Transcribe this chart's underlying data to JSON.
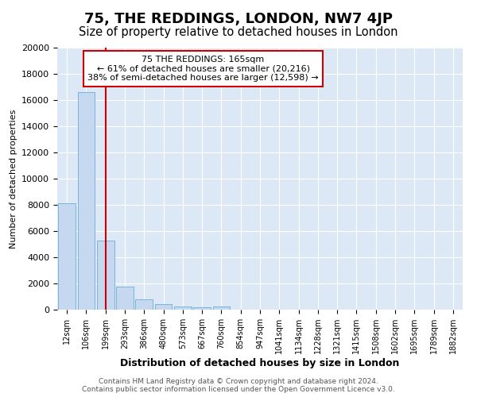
{
  "title": "75, THE REDDINGS, LONDON, NW7 4JP",
  "subtitle": "Size of property relative to detached houses in London",
  "xlabel": "Distribution of detached houses by size in London",
  "ylabel": "Number of detached properties",
  "annotation_title": "75 THE REDDINGS: 165sqm",
  "annotation_line1": "← 61% of detached houses are smaller (20,216)",
  "annotation_line2": "38% of semi-detached houses are larger (12,598) →",
  "footnote1": "Contains HM Land Registry data © Crown copyright and database right 2024.",
  "footnote2": "Contains public sector information licensed under the Open Government Licence v3.0.",
  "bar_labels": [
    "12sqm",
    "106sqm",
    "199sqm",
    "293sqm",
    "386sqm",
    "480sqm",
    "573sqm",
    "667sqm",
    "760sqm",
    "854sqm",
    "947sqm",
    "1041sqm",
    "1134sqm",
    "1228sqm",
    "1321sqm",
    "1415sqm",
    "1508sqm",
    "1602sqm",
    "1695sqm",
    "1789sqm",
    "1882sqm"
  ],
  "bar_values": [
    8100,
    16600,
    5300,
    1750,
    800,
    420,
    270,
    170,
    250,
    0,
    0,
    0,
    0,
    0,
    0,
    0,
    0,
    0,
    0,
    0,
    0
  ],
  "bar_color": "#c5d8f0",
  "bar_edge_color": "#6baed6",
  "vline_x": 2.0,
  "vline_color": "#cc0000",
  "annotation_box_color": "#ffffff",
  "annotation_box_edge": "#cc0000",
  "fig_background_color": "#ffffff",
  "plot_background_color": "#dce8f5",
  "ylim": [
    0,
    20000
  ],
  "yticks": [
    0,
    2000,
    4000,
    6000,
    8000,
    10000,
    12000,
    14000,
    16000,
    18000,
    20000
  ],
  "title_fontsize": 13,
  "subtitle_fontsize": 10.5
}
